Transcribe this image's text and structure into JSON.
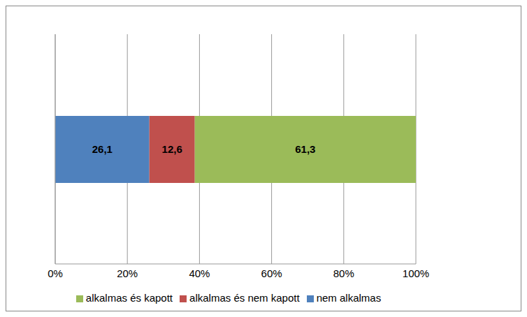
{
  "chart_data": {
    "type": "bar",
    "orientation": "horizontal",
    "stacked": true,
    "categories": [
      null
    ],
    "series": [
      {
        "name": "nem alkalmas",
        "color": "#4F81BD",
        "values": [
          26.1
        ],
        "value_labels": [
          "26,1"
        ]
      },
      {
        "name": "alkalmas és nem kapott",
        "color": "#C0504D",
        "values": [
          12.6
        ],
        "value_labels": [
          "12,6"
        ]
      },
      {
        "name": "alkalmas és kapott",
        "color": "#9BBB59",
        "values": [
          61.3
        ],
        "value_labels": [
          "61,3"
        ]
      }
    ],
    "xlim": [
      0,
      100
    ],
    "xticks": [
      {
        "value": 0,
        "label": "0%"
      },
      {
        "value": 20,
        "label": "20%"
      },
      {
        "value": 40,
        "label": "40%"
      },
      {
        "value": 60,
        "label": "60%"
      },
      {
        "value": 80,
        "label": "80%"
      },
      {
        "value": 100,
        "label": "100%"
      }
    ],
    "grid": true,
    "legend": "bottom",
    "data_labels": true,
    "tick_labels": "x"
  }
}
